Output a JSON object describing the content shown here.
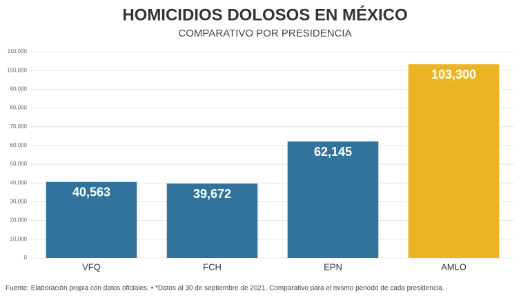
{
  "chart_data": {
    "type": "bar",
    "title": "HOMICIDIOS DOLOSOS EN MÉXICO",
    "subtitle": "COMPARATIVO POR PRESIDENCIA",
    "categories": [
      "VFQ",
      "FCH",
      "EPN",
      "AMLO"
    ],
    "values": [
      40563,
      39672,
      62145,
      103300
    ],
    "value_labels": [
      "40,563",
      "39,672",
      "62,145",
      "103,300"
    ],
    "colors": [
      "#31739c",
      "#31739c",
      "#31739c",
      "#ecb322"
    ],
    "ylim": [
      0,
      110000
    ],
    "yticks": [
      0,
      {
        "value": 10000,
        "label": "10,000"
      },
      {
        "value": 20000,
        "label": "20,000"
      },
      {
        "value": 30000,
        "label": "30,000"
      },
      {
        "value": 40000,
        "label": "40,000"
      },
      {
        "value": 50000,
        "label": "50,000"
      },
      {
        "value": 60000,
        "label": "60,000"
      },
      {
        "value": 70000,
        "label": "70,000"
      },
      {
        "value": 80000,
        "label": "80,000"
      },
      {
        "value": 90000,
        "label": "90,000"
      },
      {
        "value": 100000,
        "label": "100,000"
      },
      {
        "value": 110000,
        "label": "110,000"
      }
    ],
    "grid": true,
    "source": "Fuente: Elaboración propia con datos oficiales. • *Datos al 30 de septiembre de 2021. Comparativo para el mismo periodo de cada presidencia."
  }
}
